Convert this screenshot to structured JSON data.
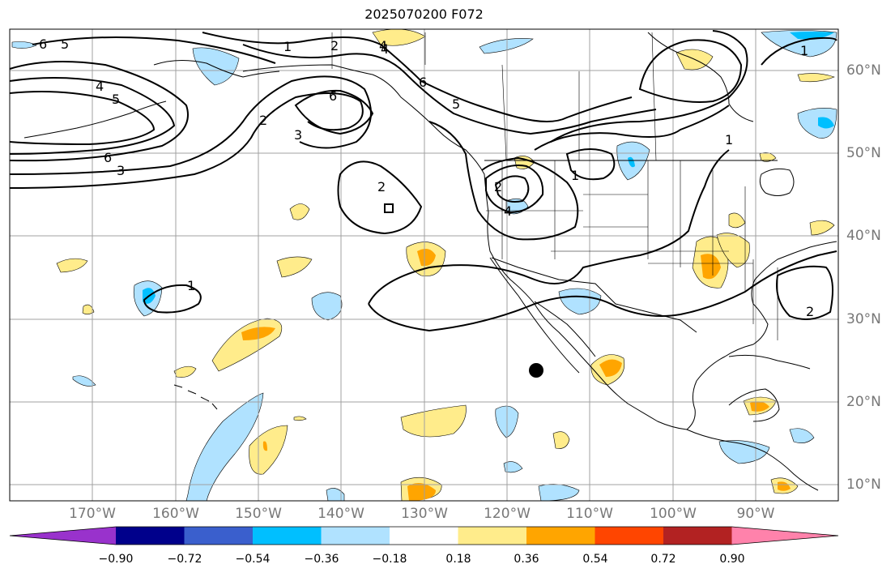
{
  "title": "2025070200 F072",
  "lat_labels": [
    "60°N",
    "50°N",
    "40°N",
    "30°N",
    "20°N",
    "10°N"
  ],
  "lon_labels": [
    "170°W",
    "160°W",
    "150°W",
    "140°W",
    "130°W",
    "120°W",
    "110°W",
    "100°W",
    "90°W"
  ],
  "contour_labels": [
    "6",
    "5",
    "4",
    "5",
    "4",
    "6",
    "3",
    "2",
    "1",
    "2",
    "4",
    "6",
    "2",
    "3",
    "6",
    "5",
    "2",
    "4",
    "1",
    "1",
    "1",
    "1",
    "2"
  ],
  "colorbar": {
    "ticks": [
      "−0.90",
      "−0.72",
      "−0.54",
      "−0.36",
      "−0.18",
      "0.18",
      "0.36",
      "0.54",
      "0.72",
      "0.90"
    ],
    "colors": [
      "#9932cc",
      "#00008b",
      "#3a5fcd",
      "#00bfff",
      "#b0e2ff",
      "#ffffff",
      "#ffec8b",
      "#ffa500",
      "#ff4500",
      "#b22222",
      "#ff82ab"
    ]
  },
  "colors": {
    "land_outline": "#000000",
    "grid": "#a0a0a0",
    "contour": "#000000",
    "marker": "#000000"
  }
}
